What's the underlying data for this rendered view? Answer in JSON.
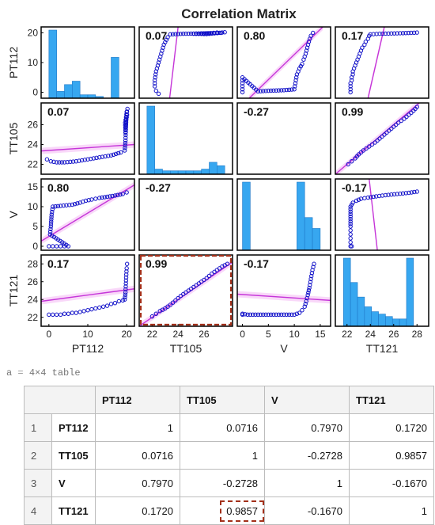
{
  "figure": {
    "title": "Correlation Matrix",
    "variables": [
      "PT112",
      "TT105",
      "V",
      "TT121"
    ],
    "colors": {
      "frame": "#000000",
      "bar": "#37a7f0",
      "bar_edge": "#1f78c8",
      "points": "#1010c8",
      "fit": "#c535d8",
      "fit_band": "#f4b8f4",
      "highlight": "#a3301a"
    },
    "highlight_cell": "TT121 vs TT105",
    "y_ticks": {
      "PT112": [
        0,
        10,
        20
      ],
      "TT105": [
        22,
        24,
        26
      ],
      "V": [
        0,
        5,
        10,
        15
      ],
      "TT121": [
        22,
        24,
        26,
        28
      ]
    },
    "x_ticks": {
      "PT112": [
        0,
        10,
        20
      ],
      "TT105": [
        22,
        24,
        26
      ],
      "V": [
        0,
        5,
        10,
        15
      ],
      "TT121": [
        22,
        24,
        26,
        28
      ]
    },
    "coefficient_labels": [
      [
        "",
        "0.07",
        "0.80",
        "0.17"
      ],
      [
        "0.07",
        "",
        "-0.27",
        "0.99"
      ],
      [
        "0.80",
        "-0.27",
        "",
        "-0.17"
      ],
      [
        "0.17",
        "0.99",
        "-0.17",
        ""
      ]
    ]
  },
  "chart_data": {
    "type": "scatter",
    "title": "Correlation Matrix",
    "variables": [
      "PT112",
      "TT105",
      "V",
      "TT121"
    ],
    "ranges": {
      "PT112": [
        -2,
        22
      ],
      "TT105": [
        21,
        28.2
      ],
      "V": [
        -1,
        17
      ],
      "TT121": [
        21,
        29
      ]
    },
    "histograms": {
      "PT112": {
        "edges": [
          0,
          2,
          4,
          6,
          8,
          10,
          12,
          14,
          16,
          18,
          20
        ],
        "counts": [
          20,
          2,
          4,
          5,
          1,
          1,
          0.5,
          0,
          12,
          0
        ]
      },
      "TT105": {
        "edges": [
          21.6,
          22.2,
          22.8,
          23.4,
          24,
          24.6,
          25.2,
          25.8,
          26.4,
          27,
          27.6
        ],
        "counts": [
          40,
          3,
          2,
          2,
          2,
          2,
          2,
          3,
          7,
          5
        ]
      },
      "V": {
        "edges": [
          0,
          1.5,
          3,
          4.5,
          6,
          7.5,
          9,
          10.5,
          12,
          13.5,
          15
        ],
        "counts": [
          25,
          0,
          0,
          0,
          0,
          0,
          0,
          25,
          12,
          8
        ]
      },
      "TT121": {
        "edges": [
          21.7,
          22.3,
          22.9,
          23.5,
          24.1,
          24.7,
          25.3,
          25.9,
          26.5,
          27.1,
          27.7
        ],
        "counts": [
          28,
          18,
          12,
          8,
          6,
          5,
          4,
          3,
          3,
          28
        ]
      }
    },
    "scatter": {
      "TT105_vs_PT112": {
        "xvar": "PT112",
        "yvar": "TT105",
        "r": 0.07,
        "points": [
          [
            -0.5,
            22.5
          ],
          [
            0.5,
            22.3
          ],
          [
            2,
            22.2
          ],
          [
            4,
            22.2
          ],
          [
            7,
            22.3
          ],
          [
            10,
            22.5
          ],
          [
            13,
            22.7
          ],
          [
            16,
            22.9
          ],
          [
            18.5,
            23.2
          ],
          [
            19.5,
            23.4
          ],
          [
            19.7,
            24.4
          ],
          [
            19.8,
            25.8
          ],
          [
            19.9,
            26.8
          ],
          [
            20,
            27.3
          ],
          [
            20.2,
            27.6
          ],
          [
            19.6,
            26.2
          ],
          [
            19.7,
            25.2
          ],
          [
            19.9,
            26.5
          ],
          [
            20.1,
            27.0
          ]
        ],
        "fit": [
          [
            -2,
            23.35
          ],
          [
            22,
            24.0
          ]
        ]
      },
      "V_vs_PT112": {
        "xvar": "PT112",
        "yvar": "V",
        "r": 0.8,
        "points": [
          [
            0,
            0
          ],
          [
            1,
            0
          ],
          [
            2,
            0
          ],
          [
            3,
            0
          ],
          [
            4,
            0
          ],
          [
            5,
            0
          ],
          [
            0.3,
            3
          ],
          [
            0.5,
            5
          ],
          [
            0.7,
            8
          ],
          [
            1,
            10
          ],
          [
            3,
            10.2
          ],
          [
            6,
            10.5
          ],
          [
            8,
            11
          ],
          [
            9.5,
            11.5
          ],
          [
            11,
            11.8
          ],
          [
            12,
            12
          ],
          [
            13,
            12.2
          ],
          [
            15,
            12.5
          ],
          [
            17,
            12.8
          ],
          [
            19,
            13.2
          ],
          [
            20,
            13.6
          ]
        ],
        "fit": [
          [
            -2,
            1.3
          ],
          [
            22,
            15.5
          ]
        ]
      },
      "TT121_vs_PT112": {
        "xvar": "PT112",
        "yvar": "TT121",
        "r": 0.17,
        "points": [
          [
            0,
            22.3
          ],
          [
            1,
            22.3
          ],
          [
            2,
            22.3
          ],
          [
            3,
            22.3
          ],
          [
            4,
            22.4
          ],
          [
            5,
            22.4
          ],
          [
            6,
            22.5
          ],
          [
            7,
            22.5
          ],
          [
            8,
            22.6
          ],
          [
            9,
            22.7
          ],
          [
            10,
            22.8
          ],
          [
            11,
            22.9
          ],
          [
            12,
            23
          ],
          [
            13,
            23.1
          ],
          [
            14,
            23.2
          ],
          [
            15,
            23.3
          ],
          [
            16,
            23.5
          ],
          [
            17,
            23.6
          ],
          [
            18,
            23.8
          ],
          [
            19,
            23.9
          ],
          [
            19.5,
            24
          ],
          [
            19.7,
            24.8
          ],
          [
            19.8,
            25.8
          ],
          [
            19.9,
            26.8
          ],
          [
            20,
            27.5
          ],
          [
            20.1,
            28
          ]
        ],
        "fit": [
          [
            -2,
            23.8
          ],
          [
            22,
            25.2
          ]
        ]
      },
      "TT121_vs_TT105": {
        "xvar": "TT105",
        "yvar": "TT121",
        "r": 0.99,
        "points": [
          [
            22,
            22.1
          ],
          [
            22.3,
            22.4
          ],
          [
            22.6,
            22.7
          ],
          [
            23,
            23
          ],
          [
            23.4,
            23.4
          ],
          [
            23.8,
            23.9
          ],
          [
            24.2,
            24.4
          ],
          [
            24.6,
            24.8
          ],
          [
            25,
            25.2
          ],
          [
            25.4,
            25.6
          ],
          [
            25.8,
            26
          ],
          [
            26.2,
            26.4
          ],
          [
            26.6,
            26.9
          ],
          [
            27,
            27.3
          ],
          [
            27.4,
            27.7
          ],
          [
            27.8,
            28.0
          ]
        ],
        "fit": [
          [
            21,
            21
          ],
          [
            28.2,
            28.2
          ]
        ]
      },
      "TT121_vs_V": {
        "xvar": "V",
        "yvar": "TT121",
        "r": -0.17,
        "points": [
          [
            0,
            22.3
          ],
          [
            0,
            22.4
          ],
          [
            1,
            22.3
          ],
          [
            2,
            22.3
          ],
          [
            3,
            22.3
          ],
          [
            4,
            22.3
          ],
          [
            5,
            22.3
          ],
          [
            10,
            22.3
          ],
          [
            10.5,
            22.4
          ],
          [
            11,
            22.5
          ],
          [
            11.5,
            22.8
          ],
          [
            12,
            23.2
          ],
          [
            12.3,
            23.8
          ],
          [
            12.6,
            24.5
          ],
          [
            12.9,
            25.3
          ],
          [
            13.2,
            26.3
          ],
          [
            13.5,
            27.3
          ],
          [
            13.8,
            28
          ]
        ],
        "fit": [
          [
            -1,
            24.6
          ],
          [
            17,
            23.9
          ]
        ]
      }
    },
    "correlation_table": {
      "variable": "a",
      "size": "4x4 table",
      "columns": [
        "PT112",
        "TT105",
        "V",
        "TT121"
      ],
      "rows": [
        {
          "index": "1",
          "name": "PT112",
          "values": [
            "1",
            "0.0716",
            "0.7970",
            "0.1720"
          ]
        },
        {
          "index": "2",
          "name": "TT105",
          "values": [
            "0.0716",
            "1",
            "-0.2728",
            "0.9857"
          ]
        },
        {
          "index": "3",
          "name": "V",
          "values": [
            "0.7970",
            "-0.2728",
            "1",
            "-0.1670"
          ]
        },
        {
          "index": "4",
          "name": "TT121",
          "values": [
            "0.1720",
            "0.9857",
            "-0.1670",
            "1"
          ]
        }
      ]
    }
  },
  "workspace": {
    "variable": "a",
    "equals": "=",
    "size_label": "4×4 table"
  }
}
